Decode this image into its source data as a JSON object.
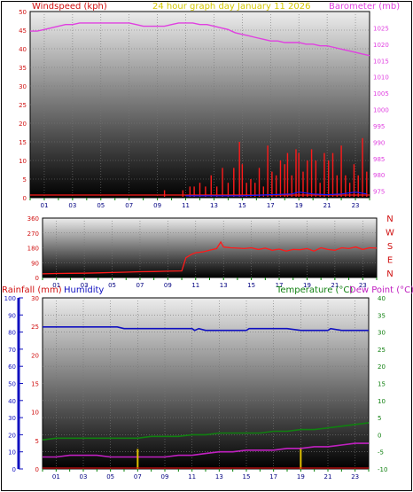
{
  "header": {
    "left": "Windspeed (kph)",
    "center": "24 hour graph day   January 11 2026",
    "right": "Barometer (mb)"
  },
  "colors": {
    "wind": "#ff1a1a",
    "gust": "#1a1aff",
    "baro": "#e040e0",
    "title": "#d4c800",
    "temp": "#108010",
    "dew": "#c020c0",
    "rain": "#d01010",
    "humidity": "#1010c0"
  },
  "chart_data": [
    {
      "type": "line",
      "title": "24 hour graph day   January 11 2026",
      "xlabel": "",
      "x_ticks": [
        "01",
        "03",
        "05",
        "07",
        "09",
        "11",
        "13",
        "15",
        "17",
        "19",
        "21",
        "23"
      ],
      "xlim": [
        0,
        24
      ],
      "y_left_label": "Windspeed (kph)",
      "y_left_ticks": [
        0,
        5,
        10,
        15,
        20,
        25,
        30,
        35,
        40,
        45,
        50
      ],
      "ylim_left": [
        0,
        50
      ],
      "y_right_label": "Barometer (mb)",
      "y_right_ticks": [
        975,
        980,
        985,
        990,
        995,
        1000,
        1005,
        1010,
        1015,
        1020,
        1025
      ],
      "ylim_right": [
        973,
        1030
      ],
      "series": [
        {
          "name": "Barometer (mb)",
          "axis": "right",
          "x": [
            0,
            0.5,
            1,
            1.5,
            2,
            2.5,
            3,
            3.5,
            4,
            4.5,
            5,
            5.5,
            6,
            6.5,
            7,
            7.5,
            8,
            8.5,
            9,
            9.5,
            10,
            10.5,
            11,
            11.5,
            12,
            12.5,
            13,
            13.5,
            14,
            14.5,
            15,
            15.5,
            16,
            16.5,
            17,
            17.5,
            18,
            18.5,
            19,
            19.5,
            20,
            20.5,
            21,
            21.5,
            22,
            22.5,
            23,
            23.5,
            24
          ],
          "y": [
            1024,
            1024,
            1024.5,
            1025,
            1025.5,
            1026,
            1026,
            1026.5,
            1026.5,
            1026.5,
            1026.5,
            1026.5,
            1026.5,
            1026.5,
            1026.5,
            1026,
            1025.5,
            1025.5,
            1025.5,
            1025.5,
            1026,
            1026.5,
            1026.5,
            1026.5,
            1026,
            1026,
            1025.5,
            1025,
            1024.5,
            1023.5,
            1023,
            1022.5,
            1022,
            1021.5,
            1021,
            1021,
            1020.5,
            1020.5,
            1020.5,
            1020,
            1020,
            1019.5,
            1019.5,
            1019,
            1018.5,
            1018,
            1017.5,
            1017,
            1016.5
          ]
        },
        {
          "name": "Windspeed (kph)",
          "axis": "left",
          "x": [
            9.5,
            10.8,
            11.3,
            11.6,
            12.0,
            12.4,
            12.8,
            13.2,
            13.6,
            14.0,
            14.4,
            14.8,
            15.0,
            15.3,
            15.6,
            15.9,
            16.2,
            16.5,
            16.8,
            17.1,
            17.4,
            17.7,
            18.0,
            18.2,
            18.5,
            18.8,
            19.0,
            19.3,
            19.6,
            19.9,
            20.2,
            20.5,
            20.8,
            21.1,
            21.4,
            21.7,
            22.0,
            22.3,
            22.6,
            22.9,
            23.2,
            23.5,
            23.8
          ],
          "y": [
            2,
            2,
            3,
            3,
            4,
            3,
            6,
            3,
            8,
            4,
            8,
            15,
            9,
            4,
            5,
            4,
            8,
            3,
            14,
            7,
            6,
            10,
            9,
            12,
            6,
            13,
            12,
            7,
            10,
            13,
            10,
            4,
            12,
            10,
            12,
            6,
            14,
            6,
            4,
            9,
            6,
            16,
            7
          ]
        },
        {
          "name": "Gust",
          "axis": "left",
          "x": [
            11,
            13,
            15,
            17,
            18.5,
            19,
            20,
            21,
            22,
            23,
            23.8
          ],
          "y": [
            0.5,
            0.5,
            0.5,
            0.8,
            1,
            1.5,
            1,
            0.8,
            1,
            1.5,
            1
          ]
        }
      ]
    },
    {
      "type": "line",
      "title": "",
      "x_ticks": [
        "01",
        "03",
        "05",
        "07",
        "09",
        "11",
        "13",
        "15",
        "17",
        "19",
        "21",
        "23"
      ],
      "xlim": [
        0,
        24
      ],
      "y_left_ticks": [
        0,
        90,
        180,
        270,
        360
      ],
      "ylim_left": [
        0,
        360
      ],
      "y_right_ticks": [
        "N",
        "W",
        "S",
        "E",
        "N"
      ],
      "series": [
        {
          "name": "Wind direction",
          "x": [
            0,
            1,
            2,
            3,
            4,
            5,
            6,
            7,
            8,
            9,
            10,
            10.3,
            10.7,
            11,
            11.5,
            12,
            12.5,
            12.8,
            13,
            13.5,
            14,
            14.5,
            15,
            15.5,
            16,
            16.5,
            17,
            17.5,
            18,
            18.5,
            19,
            19.5,
            20,
            20.5,
            21,
            21.5,
            22,
            22.5,
            23,
            23.5,
            24
          ],
          "y": [
            22,
            24,
            25,
            26,
            28,
            30,
            32,
            35,
            36,
            38,
            40,
            120,
            140,
            150,
            155,
            165,
            175,
            215,
            185,
            180,
            178,
            175,
            180,
            170,
            178,
            165,
            172,
            160,
            170,
            168,
            175,
            160,
            180,
            170,
            165,
            180,
            175,
            185,
            170,
            180,
            178
          ]
        }
      ]
    },
    {
      "type": "line",
      "title": "",
      "x_ticks": [
        "01",
        "03",
        "05",
        "07",
        "09",
        "11",
        "13",
        "15",
        "17",
        "19",
        "21",
        "23"
      ],
      "xlim": [
        0,
        24
      ],
      "axis_labels": [
        "Rainfall (mm)",
        "Humidity",
        "Temperature (°C)",
        "Dew Point (°C)"
      ],
      "humidity_ticks": [
        0,
        10,
        20,
        30,
        40,
        50,
        60,
        70,
        80,
        90,
        100
      ],
      "ylim_humidity": [
        0,
        100
      ],
      "rainfall_ticks": [
        0,
        5,
        10,
        15,
        20,
        25,
        30
      ],
      "ylim_rainfall": [
        0,
        30
      ],
      "temperature_ticks": [
        -10,
        -5,
        0,
        5,
        10,
        15,
        20,
        25,
        30,
        35,
        40
      ],
      "ylim_temperature": [
        -10,
        40
      ],
      "series": [
        {
          "name": "Humidity",
          "x": [
            0,
            1,
            2,
            3,
            4,
            5,
            5.5,
            6,
            7,
            8,
            9,
            10,
            11,
            11.2,
            11.5,
            12,
            13,
            14,
            15,
            15.2,
            16,
            17,
            18,
            19,
            20,
            21,
            21.2,
            22,
            23,
            24
          ],
          "y": [
            83,
            83,
            83,
            83,
            83,
            83,
            83,
            82,
            82,
            82,
            82,
            82,
            82,
            81,
            82,
            81,
            81,
            81,
            81,
            82,
            82,
            82,
            82,
            81,
            81,
            81,
            82,
            81,
            81,
            81
          ]
        },
        {
          "name": "Temperature (°C)",
          "x": [
            0,
            1,
            2,
            3,
            4,
            5,
            6,
            7,
            8,
            9,
            10,
            11,
            12,
            13,
            14,
            15,
            16,
            17,
            18,
            19,
            20,
            21,
            22,
            23,
            24
          ],
          "y": [
            -1.5,
            -1,
            -1,
            -1,
            -1,
            -1,
            -1,
            -1,
            -0.5,
            -0.5,
            -0.5,
            0,
            0,
            0.5,
            0.5,
            0.5,
            0.5,
            1,
            1,
            1.5,
            1.5,
            2,
            2.5,
            3,
            3.5
          ]
        },
        {
          "name": "Dew Point (°C)",
          "x": [
            0,
            1,
            2,
            3,
            4,
            5,
            6,
            7,
            8,
            9,
            10,
            11,
            12,
            13,
            14,
            15,
            16,
            17,
            18,
            19,
            20,
            21,
            22,
            23,
            24
          ],
          "y": [
            -6.5,
            -6.5,
            -6,
            -6,
            -6,
            -6.5,
            -6.5,
            -6.5,
            -6.5,
            -6.5,
            -6,
            -6,
            -5.5,
            -5,
            -5,
            -4.5,
            -4.5,
            -4.5,
            -4,
            -4,
            -3.5,
            -3.5,
            -3,
            -2.5,
            -2.5
          ]
        },
        {
          "name": "Rainfall (mm)",
          "x": [
            7,
            19
          ],
          "y": [
            3.5,
            3.5
          ]
        }
      ]
    }
  ]
}
